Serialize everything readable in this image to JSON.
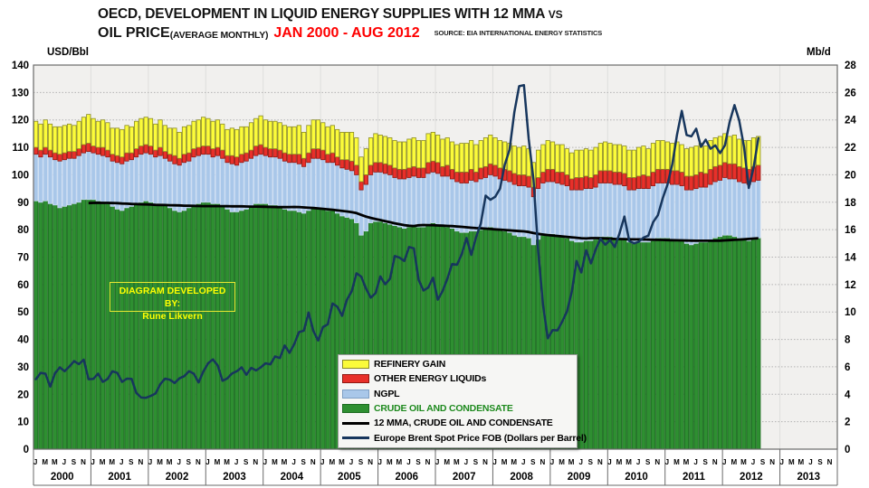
{
  "title": {
    "line1": "OECD, DEVELOPMENT IN LIQUID ENERGY SUPPLIES WITH 12 MMA",
    "line1_suffix": "VS",
    "line2_main": "OIL PRICE",
    "line2_sub": "(AVERAGE MONTHLY)",
    "date_range": "JAN 2000 - AUG 2012",
    "source": "SOURCE: EIA INTERNATIONAL ENERGY STATISTICS"
  },
  "axis_units": {
    "left": "USD/Bbl",
    "right": "Mb/d"
  },
  "credit": {
    "line1": "DIAGRAM DEVELOPED BY:",
    "line2": "Rune Likvern"
  },
  "legend": {
    "items": [
      {
        "label": "REFINERY GAIN",
        "swatch": "rect",
        "color": "#FBFB3A",
        "border": "#8B8B26",
        "text_color": "#000000"
      },
      {
        "label": "OTHER ENERGY LIQUIDs",
        "swatch": "rect",
        "color": "#E8302A",
        "border": "#8F1812",
        "text_color": "#000000"
      },
      {
        "label": "NGPL",
        "swatch": "rect",
        "color": "#A9C7E9",
        "border": "#7F9FC4",
        "text_color": "#000000"
      },
      {
        "label": "CRUDE OIL AND CONDENSATE",
        "swatch": "rect",
        "color": "#2E8F31",
        "border": "#1C6B21",
        "text_color": "#1E8A1E"
      },
      {
        "label": "12 MMA, CRUDE OIL AND CONDENSATE",
        "swatch": "line",
        "color": "#000000",
        "border": "#000000",
        "text_color": "#000000"
      },
      {
        "label": "Europe Brent Spot Price FOB (Dollars per Barrel)",
        "swatch": "line",
        "color": "#17365D",
        "border": "#17365D",
        "text_color": "#000000"
      }
    ]
  },
  "chart_data": {
    "type": "combo_stacked_bar_line",
    "period": {
      "start": "2000-01",
      "end_bars": "2012-08",
      "axis_end": "2013-12"
    },
    "x_years": [
      2000,
      2001,
      2002,
      2003,
      2004,
      2005,
      2006,
      2007,
      2008,
      2009,
      2010,
      2011,
      2012,
      2013
    ],
    "month_letters": [
      "J",
      "M",
      "M",
      "J",
      "S",
      "N"
    ],
    "left_axis": {
      "label": "USD/Bbl",
      "min": 0,
      "max": 140,
      "step": 10
    },
    "right_axis": {
      "label": "Mb/d",
      "min": 0,
      "max": 28,
      "step": 2
    },
    "grid": "horizontal-dotted",
    "bar_series": [
      {
        "name": "CRUDE OIL AND CONDENSATE",
        "axis": "right",
        "unit": "Mb/d",
        "color": "#2E8F31",
        "border": "#1C6B21",
        "values": [
          18.1,
          18.0,
          18.1,
          17.9,
          17.8,
          17.6,
          17.7,
          17.8,
          17.9,
          18.0,
          18.2,
          18.2,
          18.2,
          18.1,
          18.0,
          17.9,
          17.7,
          17.5,
          17.4,
          17.6,
          17.7,
          17.9,
          18.0,
          18.1,
          18.0,
          17.9,
          17.9,
          17.8,
          17.6,
          17.4,
          17.3,
          17.4,
          17.6,
          17.8,
          17.9,
          18.0,
          18.0,
          17.9,
          17.9,
          17.8,
          17.5,
          17.3,
          17.3,
          17.4,
          17.5,
          17.7,
          17.9,
          17.9,
          17.9,
          17.8,
          17.8,
          17.7,
          17.5,
          17.4,
          17.4,
          17.3,
          17.2,
          17.4,
          17.6,
          17.6,
          17.5,
          17.4,
          17.4,
          17.2,
          17.0,
          16.9,
          16.8,
          16.5,
          15.6,
          15.9,
          16.5,
          16.6,
          16.6,
          16.5,
          16.4,
          16.3,
          16.2,
          16.1,
          16.2,
          16.3,
          16.2,
          16.2,
          16.4,
          16.5,
          16.4,
          16.3,
          16.2,
          16.1,
          15.9,
          15.8,
          15.8,
          15.9,
          15.9,
          16.0,
          16.1,
          16.2,
          16.1,
          16.0,
          15.9,
          15.8,
          15.6,
          15.5,
          15.5,
          15.4,
          14.9,
          15.3,
          15.6,
          15.7,
          15.7,
          15.6,
          15.5,
          15.4,
          15.2,
          15.1,
          15.1,
          15.2,
          15.2,
          15.3,
          15.5,
          15.5,
          15.5,
          15.4,
          15.4,
          15.3,
          15.1,
          15.0,
          15.1,
          15.1,
          15.1,
          15.2,
          15.4,
          15.4,
          15.4,
          15.3,
          15.3,
          15.2,
          15.0,
          14.9,
          15.0,
          15.1,
          15.1,
          15.2,
          15.4,
          15.5,
          15.6,
          15.6,
          15.5,
          15.4,
          15.3,
          15.2,
          15.3,
          15.4
        ]
      },
      {
        "name": "NGPL",
        "axis": "right",
        "unit": "Mb/d",
        "color": "#A9C7E9",
        "border": "#C9DCF2",
        "values": [
          3.4,
          3.3,
          3.4,
          3.4,
          3.3,
          3.4,
          3.4,
          3.4,
          3.3,
          3.4,
          3.4,
          3.5,
          3.4,
          3.4,
          3.4,
          3.4,
          3.3,
          3.4,
          3.4,
          3.4,
          3.4,
          3.4,
          3.5,
          3.5,
          3.5,
          3.4,
          3.5,
          3.4,
          3.4,
          3.4,
          3.4,
          3.5,
          3.4,
          3.5,
          3.5,
          3.5,
          3.5,
          3.4,
          3.5,
          3.4,
          3.4,
          3.5,
          3.4,
          3.5,
          3.5,
          3.5,
          3.5,
          3.6,
          3.5,
          3.5,
          3.5,
          3.5,
          3.5,
          3.5,
          3.5,
          3.5,
          3.4,
          3.5,
          3.6,
          3.6,
          3.6,
          3.5,
          3.5,
          3.5,
          3.5,
          3.5,
          3.5,
          3.5,
          3.3,
          3.4,
          3.5,
          3.6,
          3.6,
          3.6,
          3.6,
          3.5,
          3.5,
          3.6,
          3.6,
          3.6,
          3.6,
          3.6,
          3.7,
          3.7,
          3.7,
          3.6,
          3.7,
          3.6,
          3.6,
          3.6,
          3.6,
          3.7,
          3.6,
          3.7,
          3.7,
          3.8,
          3.8,
          3.7,
          3.7,
          3.7,
          3.7,
          3.7,
          3.7,
          3.7,
          3.5,
          3.7,
          3.8,
          3.8,
          3.8,
          3.8,
          3.8,
          3.8,
          3.7,
          3.8,
          3.8,
          3.8,
          3.8,
          3.8,
          3.9,
          3.9,
          3.9,
          3.9,
          3.9,
          3.9,
          3.8,
          3.9,
          3.9,
          3.9,
          3.9,
          4.0,
          4.0,
          4.0,
          4.0,
          4.0,
          4.0,
          4.0,
          3.9,
          4.0,
          4.0,
          4.0,
          4.0,
          4.1,
          4.1,
          4.1,
          4.2,
          4.1,
          4.2,
          4.1,
          4.1,
          4.1,
          4.2,
          4.2
        ]
      },
      {
        "name": "OTHER ENERGY LIQUIDs",
        "axis": "right",
        "unit": "Mb/d",
        "color": "#E8302A",
        "border": "#8F1812",
        "values": [
          0.5,
          0.5,
          0.5,
          0.5,
          0.5,
          0.5,
          0.5,
          0.5,
          0.5,
          0.5,
          0.6,
          0.6,
          0.5,
          0.5,
          0.6,
          0.5,
          0.5,
          0.5,
          0.5,
          0.6,
          0.5,
          0.6,
          0.6,
          0.6,
          0.6,
          0.5,
          0.6,
          0.5,
          0.5,
          0.6,
          0.5,
          0.6,
          0.6,
          0.6,
          0.6,
          0.6,
          0.6,
          0.6,
          0.6,
          0.6,
          0.5,
          0.6,
          0.6,
          0.6,
          0.6,
          0.6,
          0.7,
          0.7,
          0.6,
          0.6,
          0.6,
          0.6,
          0.6,
          0.6,
          0.6,
          0.7,
          0.6,
          0.7,
          0.7,
          0.7,
          0.7,
          0.6,
          0.7,
          0.6,
          0.6,
          0.7,
          0.7,
          0.7,
          0.6,
          0.7,
          0.7,
          0.7,
          0.7,
          0.7,
          0.7,
          0.7,
          0.7,
          0.7,
          0.7,
          0.7,
          0.7,
          0.7,
          0.8,
          0.8,
          0.8,
          0.7,
          0.8,
          0.7,
          0.7,
          0.8,
          0.8,
          0.8,
          0.7,
          0.8,
          0.8,
          0.8,
          0.8,
          0.8,
          0.8,
          0.8,
          0.8,
          0.8,
          0.8,
          0.8,
          0.7,
          0.8,
          0.8,
          0.9,
          0.9,
          0.8,
          0.9,
          0.8,
          0.8,
          0.9,
          0.9,
          0.9,
          0.8,
          0.9,
          0.9,
          0.9,
          0.9,
          0.9,
          0.9,
          0.9,
          0.9,
          0.9,
          0.9,
          1.0,
          0.9,
          1.0,
          1.0,
          1.0,
          1.0,
          1.0,
          1.0,
          1.0,
          1.0,
          1.0,
          1.0,
          1.1,
          1.0,
          1.1,
          1.1,
          1.1,
          1.1,
          1.1,
          1.1,
          1.1,
          1.1,
          1.1,
          1.1,
          1.1
        ]
      },
      {
        "name": "REFINERY GAIN",
        "axis": "right",
        "unit": "Mb/d",
        "color": "#FBFB3A",
        "border": "#8B8B26",
        "values": [
          1.9,
          1.9,
          2.0,
          1.9,
          1.9,
          2.0,
          2.0,
          2.0,
          1.9,
          2.0,
          2.0,
          2.1,
          2.0,
          1.9,
          2.0,
          2.0,
          1.9,
          2.0,
          2.0,
          2.0,
          1.9,
          2.0,
          2.0,
          2.0,
          2.0,
          1.9,
          2.0,
          1.9,
          1.9,
          2.0,
          1.9,
          2.0,
          2.0,
          2.0,
          2.0,
          2.1,
          2.0,
          2.0,
          2.0,
          1.9,
          1.9,
          2.0,
          2.0,
          2.0,
          1.9,
          2.0,
          2.0,
          2.1,
          2.0,
          2.0,
          2.0,
          2.0,
          2.0,
          2.0,
          2.0,
          2.1,
          1.9,
          2.0,
          2.1,
          2.1,
          2.0,
          2.0,
          2.0,
          2.0,
          2.0,
          2.0,
          2.1,
          2.0,
          1.8,
          1.9,
          2.0,
          2.1,
          2.0,
          2.0,
          2.0,
          2.0,
          2.0,
          2.0,
          2.1,
          2.1,
          2.0,
          2.0,
          2.1,
          2.1,
          2.0,
          2.0,
          2.0,
          2.0,
          2.0,
          2.1,
          2.1,
          2.1,
          2.0,
          2.0,
          2.1,
          2.1,
          2.0,
          2.0,
          2.0,
          2.0,
          2.0,
          2.0,
          2.1,
          2.0,
          1.8,
          2.0,
          2.0,
          2.1,
          2.0,
          2.0,
          2.0,
          1.9,
          1.9,
          2.0,
          2.0,
          2.0,
          2.0,
          2.0,
          2.0,
          2.1,
          2.0,
          2.0,
          2.0,
          2.0,
          2.0,
          2.0,
          2.1,
          2.1,
          2.0,
          2.1,
          2.1,
          2.1,
          2.0,
          2.0,
          2.1,
          2.0,
          2.0,
          2.1,
          2.1,
          2.1,
          2.0,
          2.1,
          2.1,
          2.1,
          2.1,
          2.0,
          2.1,
          2.0,
          2.0,
          2.1,
          2.1,
          2.1
        ]
      }
    ],
    "line_series": [
      {
        "name": "Europe Brent Spot Price FOB (Dollars per Barrel)",
        "axis": "left",
        "unit": "USD/Bbl",
        "color": "#17365D",
        "start_index": 0,
        "values": [
          25.5,
          27.8,
          27.5,
          22.8,
          27.7,
          29.8,
          28.4,
          30.1,
          32.1,
          31.0,
          32.6,
          25.5,
          25.6,
          27.5,
          24.5,
          25.6,
          28.4,
          27.8,
          24.5,
          25.7,
          25.6,
          20.5,
          18.8,
          18.7,
          19.4,
          20.3,
          23.7,
          25.7,
          25.3,
          24.1,
          25.8,
          26.6,
          28.4,
          27.5,
          24.3,
          28.3,
          31.3,
          32.7,
          30.5,
          24.9,
          25.8,
          27.6,
          28.4,
          29.8,
          27.1,
          29.6,
          28.7,
          29.8,
          31.3,
          30.9,
          33.8,
          33.2,
          37.8,
          35.1,
          38.3,
          42.7,
          43.2,
          49.8,
          43.1,
          39.6,
          44.5,
          45.5,
          53.1,
          51.9,
          48.6,
          54.4,
          57.5,
          64.1,
          62.9,
          58.5,
          55.2,
          56.9,
          63.0,
          60.1,
          62.1,
          70.4,
          69.8,
          68.6,
          73.7,
          73.2,
          61.7,
          57.8,
          58.9,
          62.5,
          54.5,
          57.6,
          62.1,
          67.5,
          67.2,
          71.1,
          77.0,
          70.8,
          77.2,
          82.3,
          92.4,
          90.9,
          92.0,
          95.0,
          103.7,
          109.1,
          122.8,
          132.3,
          132.7,
          113.0,
          98.1,
          71.9,
          52.5,
          40.4,
          43.4,
          43.3,
          46.5,
          50.2,
          57.3,
          68.6,
          64.4,
          72.5,
          67.7,
          72.8,
          76.7,
          74.5,
          76.2,
          73.7,
          78.8,
          84.8,
          75.9,
          75.0,
          75.6,
          77.1,
          77.8,
          82.7,
          85.3,
          91.4,
          96.5,
          103.7,
          114.6,
          123.3,
          114.5,
          114.0,
          116.8,
          110.2,
          112.8,
          109.5,
          110.7,
          107.9,
          110.7,
          119.3,
          125.4,
          119.8,
          110.3,
          95.2,
          102.6,
          113.4
        ]
      },
      {
        "name": "12 MMA, CRUDE OIL AND CONDENSATE",
        "axis": "right",
        "unit": "Mb/d",
        "color": "#000000",
        "derived": "trailing_12_month_average_of CRUDE OIL AND CONDENSATE",
        "start_index": 11
      }
    ]
  }
}
